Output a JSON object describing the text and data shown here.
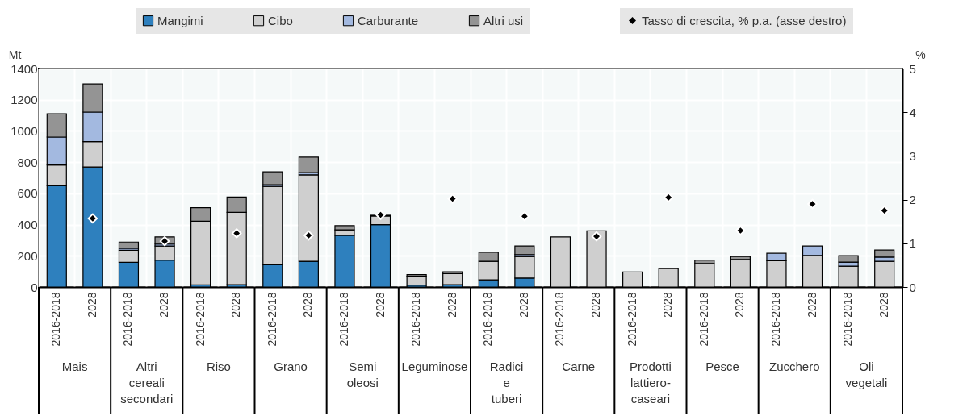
{
  "chart_data": {
    "type": "bar",
    "stacked": true,
    "ylabel": "Mt",
    "y2label": "%",
    "grid": true,
    "legend": "top",
    "categories": [
      "2016-2018",
      "2028",
      "2016-2018",
      "2028",
      "2016-2018",
      "2028",
      "2016-2018",
      "2028",
      "2016-2018",
      "2028",
      "2016-2018",
      "2028",
      "2016-2018",
      "2028",
      "2016-2018",
      "2028",
      "2016-2018",
      "2028",
      "2016-2018",
      "2028",
      "2016-2018",
      "2028",
      "2016-2018",
      "2028"
    ],
    "annotations": [
      "Mais",
      "Altri cereali secondari",
      "Riso",
      "Grano",
      "Semi oleosi",
      "Leguminose",
      "Radici e tuberi",
      "Carne",
      "Prodotti lattiero-caseari",
      "Pesce",
      "Zucchero",
      "Oli vegetali"
    ],
    "ylim": [
      0,
      1400
    ],
    "yticks": [
      0,
      200,
      400,
      600,
      800,
      1000,
      1200,
      1400
    ],
    "y2lim": [
      0,
      5
    ],
    "y2ticks": [
      0,
      1,
      2,
      3,
      4,
      5
    ],
    "series": [
      {
        "name": "Mangimi",
        "color": "#2e80be",
        "values": [
          649,
          769,
          158,
          172,
          14,
          15,
          142,
          165,
          331,
          400,
          12,
          15,
          46,
          57,
          null,
          null,
          null,
          null,
          null,
          null,
          null,
          null,
          null,
          null
        ]
      },
      {
        "name": "Cibo",
        "color": "#cfcfcf",
        "values": [
          133,
          163,
          78,
          91,
          408,
          464,
          503,
          554,
          35,
          55,
          57,
          71,
          119,
          139,
          321,
          360,
          96,
          118,
          151,
          177,
          168,
          202,
          134,
          165
        ]
      },
      {
        "name": "Carburante",
        "color": "#a3b9e0",
        "values": [
          179,
          189,
          12,
          12,
          null,
          null,
          10,
          14,
          null,
          null,
          null,
          null,
          null,
          12,
          null,
          null,
          null,
          null,
          null,
          null,
          48,
          61,
          26,
          27
        ]
      },
      {
        "name": "Altri usi",
        "color": "#949494",
        "values": [
          149,
          180,
          40,
          46,
          86,
          98,
          83,
          99,
          27,
          5,
          10,
          12,
          58,
          55,
          null,
          null,
          null,
          null,
          21,
          19,
          null,
          null,
          41,
          45
        ]
      },
      {
        "name": "Tasso di crescita, % p.a. (asse destro)",
        "type": "scatter",
        "axis": "y2",
        "marker": "diamond",
        "color": "#000000",
        "values": [
          null,
          1.57,
          null,
          1.05,
          null,
          1.23,
          null,
          1.18,
          null,
          1.65,
          null,
          2.02,
          null,
          1.62,
          null,
          1.16,
          null,
          2.05,
          null,
          1.29,
          null,
          1.9,
          null,
          1.75
        ]
      }
    ]
  }
}
